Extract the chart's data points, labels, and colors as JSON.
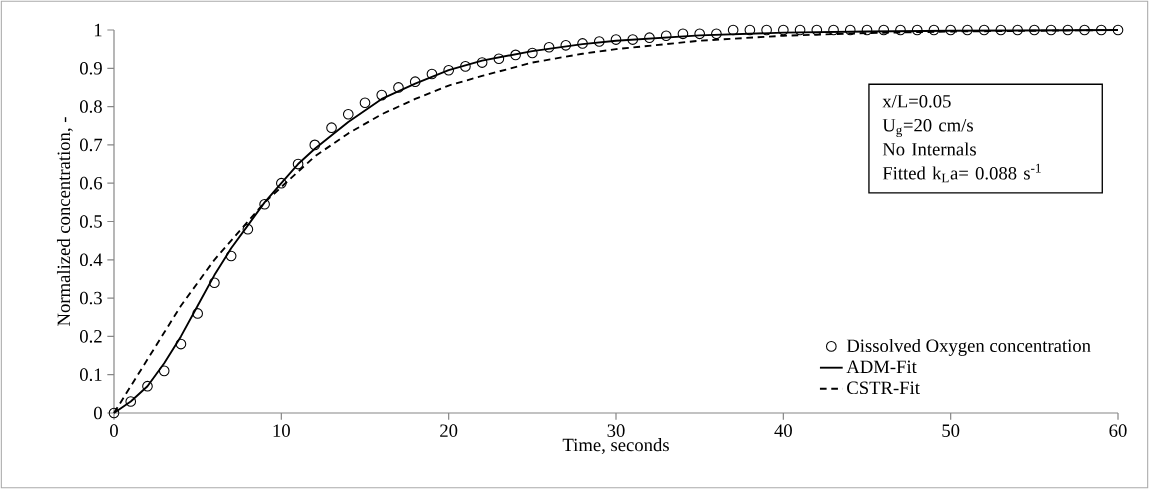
{
  "chart_data": {
    "type": "scatter",
    "xlabel": "Time, seconds",
    "ylabel": "Normalized concentration, -",
    "xlim": [
      0,
      60
    ],
    "ylim": [
      0,
      1
    ],
    "xticks": [
      0,
      10,
      20,
      30,
      40,
      50,
      60
    ],
    "yticks": [
      0,
      0.1,
      0.2,
      0.3,
      0.4,
      0.5,
      0.6,
      0.7,
      0.8,
      0.9,
      1
    ],
    "grid": false,
    "legend": "bottom right",
    "annotations": [
      "x/L=0.05",
      "U$_{g}$=20 cm/s",
      "No Internals",
      "Fitted k$_{L}$a= 0.088 s$^{-1}$"
    ],
    "series": [
      {
        "name": "Dissolved Oxygen concentration",
        "marker": "circle",
        "color": "#000000",
        "x": [
          0,
          1,
          2,
          3,
          4,
          5,
          6,
          7,
          8,
          9,
          10,
          11,
          12,
          13,
          14,
          15,
          16,
          17,
          18,
          19,
          20,
          21,
          22,
          23,
          24,
          25,
          26,
          27,
          28,
          29,
          30,
          31,
          32,
          33,
          34,
          35,
          36,
          37,
          38,
          39,
          40,
          41,
          42,
          43,
          44,
          45,
          46,
          47,
          48,
          49,
          50,
          51,
          52,
          53,
          54,
          55,
          56,
          57,
          58,
          59,
          60
        ],
        "values": [
          0,
          0.03,
          0.07,
          0.11,
          0.18,
          0.26,
          0.34,
          0.41,
          0.48,
          0.545,
          0.6,
          0.65,
          0.7,
          0.745,
          0.78,
          0.81,
          0.83,
          0.85,
          0.865,
          0.885,
          0.895,
          0.905,
          0.915,
          0.925,
          0.935,
          0.94,
          0.955,
          0.96,
          0.965,
          0.97,
          0.975,
          0.975,
          0.98,
          0.985,
          0.99,
          0.99,
          0.99,
          1,
          1,
          1,
          1,
          1,
          1,
          1,
          1,
          1,
          1,
          1,
          1,
          1,
          1,
          1,
          1,
          1,
          1,
          1,
          1,
          1,
          1,
          1,
          1
        ]
      },
      {
        "name": "ADM-Fit",
        "type": "line",
        "line_style": "solid",
        "color": "#000000",
        "x": [
          0,
          1,
          2,
          3,
          4,
          5,
          6,
          7,
          8,
          9,
          10,
          11,
          12,
          14,
          16,
          18,
          20,
          22,
          25,
          28,
          30,
          35,
          40,
          45,
          50,
          60
        ],
        "values": [
          0,
          0.03,
          0.07,
          0.13,
          0.2,
          0.28,
          0.36,
          0.43,
          0.49,
          0.55,
          0.6,
          0.65,
          0.69,
          0.76,
          0.82,
          0.86,
          0.895,
          0.92,
          0.945,
          0.963,
          0.972,
          0.986,
          0.993,
          0.996,
          0.998,
          1
        ]
      },
      {
        "name": "CSTR-Fit",
        "type": "line",
        "line_style": "dashed",
        "color": "#000000",
        "x": [
          0,
          1,
          2,
          3,
          4,
          5,
          6,
          7,
          8,
          9,
          10,
          12,
          14,
          16,
          18,
          20,
          22,
          25,
          28,
          30,
          35,
          40,
          45,
          50,
          55,
          60
        ],
        "values": [
          0,
          0.07,
          0.14,
          0.21,
          0.28,
          0.34,
          0.4,
          0.45,
          0.5,
          0.55,
          0.59,
          0.67,
          0.73,
          0.78,
          0.82,
          0.855,
          0.88,
          0.915,
          0.938,
          0.95,
          0.972,
          0.985,
          0.992,
          0.996,
          0.998,
          1
        ]
      }
    ]
  }
}
